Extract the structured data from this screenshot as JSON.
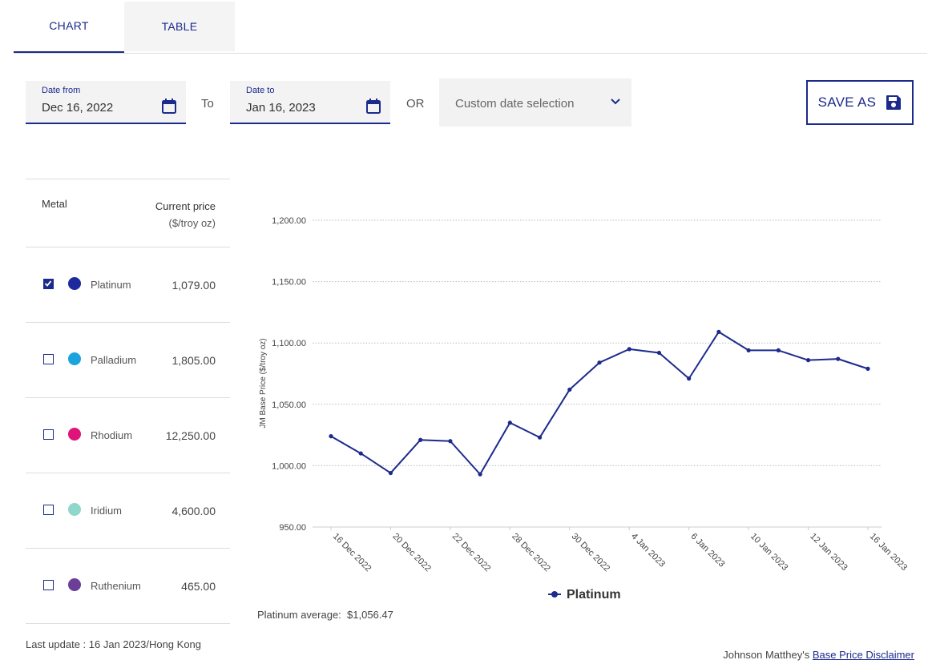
{
  "tabs": [
    {
      "label": "CHART",
      "active": true
    },
    {
      "label": "TABLE",
      "active": false
    }
  ],
  "date_from": {
    "label": "Date from",
    "value": "Dec 16, 2022"
  },
  "to_label": "To",
  "date_to": {
    "label": "Date to",
    "value": "Jan 16, 2023"
  },
  "or_label": "OR",
  "custom_select": {
    "value": "Custom date selection"
  },
  "save_as": {
    "label": "SAVE AS"
  },
  "metal_table": {
    "header_metal": "Metal",
    "header_price": "Current price",
    "header_unit": "($/troy oz)",
    "rows": [
      {
        "name": "Platinum",
        "price": "1,079.00",
        "color": "#1c2a9e",
        "checked": true
      },
      {
        "name": "Palladium",
        "price": "1,805.00",
        "color": "#1aa3dc",
        "checked": false
      },
      {
        "name": "Rhodium",
        "price": "12,250.00",
        "color": "#e0137a",
        "checked": false
      },
      {
        "name": "Iridium",
        "price": "4,600.00",
        "color": "#8fd6cb",
        "checked": false
      },
      {
        "name": "Ruthenium",
        "price": "465.00",
        "color": "#6b3e97",
        "checked": false
      }
    ]
  },
  "last_update": "Last update : 16 Jan 2023/Hong Kong",
  "average_label": "Platinum average:",
  "average_value": "$1,056.47",
  "disclaimer_prefix": "Johnson Matthey's",
  "disclaimer_link": "Base Price Disclaimer",
  "chart_data": {
    "type": "line",
    "ylabel": "JM Base Price ($/troy oz)",
    "ylim": [
      950,
      1200
    ],
    "yticks": [
      "950.00",
      "1,000.00",
      "1,050.00",
      "1,100.00",
      "1,150.00",
      "1,200.00"
    ],
    "ytick_values": [
      950,
      1000,
      1050,
      1100,
      1150,
      1200
    ],
    "grid": true,
    "legend": "bottom-center",
    "line_color": "#1c2a8c",
    "x": [
      "16 Dec 2022",
      "19 Dec 2022",
      "20 Dec 2022",
      "21 Dec 2022",
      "22 Dec 2022",
      "23 Dec 2022",
      "28 Dec 2022",
      "29 Dec 2022",
      "30 Dec 2022",
      "3 Jan 2023",
      "4 Jan 2023",
      "5 Jan 2023",
      "6 Jan 2023",
      "9 Jan 2023",
      "10 Jan 2023",
      "11 Jan 2023",
      "12 Jan 2023",
      "13 Jan 2023",
      "16 Jan 2023"
    ],
    "xtick_labels": [
      "16 Dec 2022",
      "20 Dec 2022",
      "22 Dec 2022",
      "28 Dec 2022",
      "30 Dec 2022",
      "4 Jan 2023",
      "6 Jan 2023",
      "10 Jan 2023",
      "12 Jan 2023",
      "16 Jan 2023"
    ],
    "series": [
      {
        "name": "Platinum",
        "values": [
          1024,
          1010,
          994,
          1021,
          1020,
          993,
          1035,
          1023,
          1062,
          1084,
          1095,
          1092,
          1071,
          1109,
          1094,
          1094,
          1086,
          1087,
          1079
        ]
      }
    ]
  }
}
